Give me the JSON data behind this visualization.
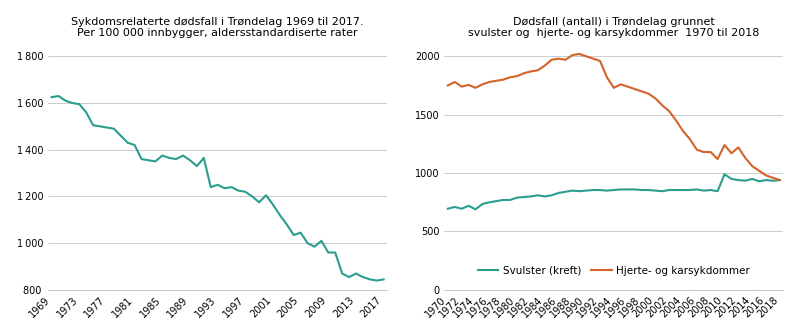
{
  "chart1": {
    "title": "Sykdomsrelaterte dødsfall i Trøndelag 1969 til 2017.\nPer 100 000 innbygger, aldersstandardiserte rater",
    "color": "#2a9d8f",
    "years": [
      1969,
      1970,
      1971,
      1972,
      1973,
      1974,
      1975,
      1976,
      1977,
      1978,
      1979,
      1980,
      1981,
      1982,
      1983,
      1984,
      1985,
      1986,
      1987,
      1988,
      1989,
      1990,
      1991,
      1992,
      1993,
      1994,
      1995,
      1996,
      1997,
      1998,
      1999,
      2000,
      2001,
      2002,
      2003,
      2004,
      2005,
      2006,
      2007,
      2008,
      2009,
      2010,
      2011,
      2012,
      2013,
      2014,
      2015,
      2016,
      2017
    ],
    "values": [
      1625,
      1630,
      1610,
      1600,
      1595,
      1560,
      1505,
      1500,
      1495,
      1490,
      1460,
      1430,
      1420,
      1360,
      1355,
      1350,
      1375,
      1365,
      1360,
      1375,
      1355,
      1330,
      1365,
      1240,
      1250,
      1235,
      1240,
      1225,
      1220,
      1200,
      1175,
      1205,
      1165,
      1120,
      1080,
      1035,
      1045,
      1000,
      985,
      1010,
      960,
      960,
      870,
      855,
      870,
      855,
      845,
      840,
      845
    ],
    "ylim": [
      800,
      1850
    ],
    "yticks": [
      800,
      1000,
      1200,
      1400,
      1600,
      1800
    ],
    "xticks": [
      1969,
      1973,
      1977,
      1981,
      1985,
      1989,
      1993,
      1997,
      2001,
      2005,
      2009,
      2013,
      2017
    ]
  },
  "chart2": {
    "title": "Dødsfall (antall) i Trøndelag grunnet\nsvulster og  hjerte- og karsykdommer  1970 til 2018",
    "cancer_color": "#2a9d8f",
    "heart_color": "#d4622a",
    "years": [
      1970,
      1971,
      1972,
      1973,
      1974,
      1975,
      1976,
      1977,
      1978,
      1979,
      1980,
      1981,
      1982,
      1983,
      1984,
      1985,
      1986,
      1987,
      1988,
      1989,
      1990,
      1991,
      1992,
      1993,
      1994,
      1995,
      1996,
      1997,
      1998,
      1999,
      2000,
      2001,
      2002,
      2003,
      2004,
      2005,
      2006,
      2007,
      2008,
      2009,
      2010,
      2011,
      2012,
      2013,
      2014,
      2015,
      2016,
      2017,
      2018
    ],
    "cancer": [
      695,
      710,
      695,
      720,
      690,
      735,
      750,
      760,
      770,
      770,
      790,
      795,
      800,
      810,
      800,
      810,
      830,
      840,
      850,
      845,
      850,
      855,
      855,
      850,
      855,
      860,
      860,
      860,
      855,
      855,
      850,
      845,
      855,
      855,
      855,
      855,
      860,
      850,
      855,
      845,
      990,
      950,
      940,
      935,
      950,
      930,
      940,
      935,
      940
    ],
    "heart": [
      1750,
      1780,
      1740,
      1755,
      1730,
      1760,
      1780,
      1790,
      1800,
      1820,
      1830,
      1855,
      1870,
      1880,
      1920,
      1970,
      1980,
      1970,
      2010,
      2020,
      2000,
      1980,
      1960,
      1820,
      1730,
      1760,
      1740,
      1720,
      1700,
      1680,
      1640,
      1580,
      1530,
      1450,
      1360,
      1290,
      1200,
      1180,
      1180,
      1120,
      1240,
      1170,
      1220,
      1130,
      1060,
      1020,
      980,
      960,
      940
    ],
    "ylim": [
      0,
      2100
    ],
    "yticks": [
      0,
      500,
      1000,
      1500,
      2000
    ],
    "xticks": [
      1970,
      1972,
      1974,
      1976,
      1978,
      1980,
      1982,
      1984,
      1986,
      1988,
      1990,
      1992,
      1994,
      1996,
      1998,
      2000,
      2002,
      2004,
      2006,
      2008,
      2010,
      2012,
      2014,
      2016,
      2018
    ],
    "legend_cancer": "Svulster (kreft)",
    "legend_heart": "Hjerte- og karsykdommer"
  },
  "bg_color": "#ffffff",
  "grid_color": "#cccccc"
}
